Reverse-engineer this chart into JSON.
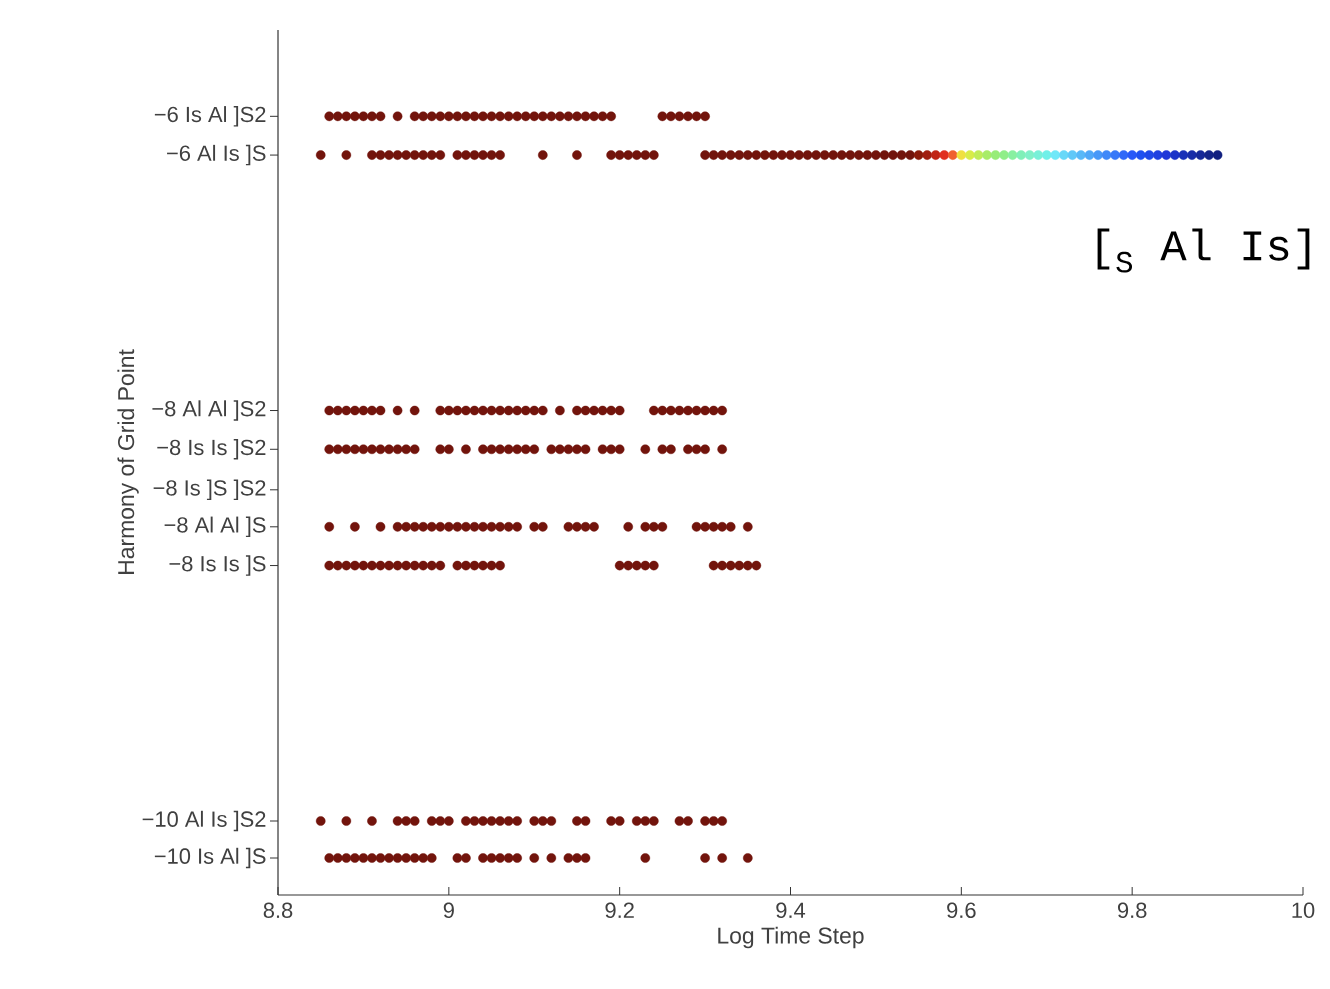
{
  "chart_data": {
    "type": "scatter",
    "xlabel": "Log Time Step",
    "ylabel": "Harmony of Grid Point",
    "annotations": [
      "[$_{S}$ Al Is]"
    ],
    "xlim": [
      8.8,
      10
    ],
    "ylim": [
      -10.31,
      -5.4
    ],
    "xticks": [
      8.8,
      9,
      9.2,
      9.4,
      9.6,
      9.8,
      10
    ],
    "yticks": [
      {
        "value": -5.89,
        "label": "−6 Is Al ]S2"
      },
      {
        "value": -6.11,
        "label": "−6 Al Is ]S"
      },
      {
        "value": -7.56,
        "label": "−8 Al Al ]S2"
      },
      {
        "value": -7.78,
        "label": "−8 Is Is ]S2"
      },
      {
        "value": -8.01,
        "label": "−8 Is ]S ]S2"
      },
      {
        "value": -8.22,
        "label": "−8 Al Al ]S"
      },
      {
        "value": -8.44,
        "label": "−8 Is Is ]S"
      },
      {
        "value": -9.89,
        "label": "−10 Al Is ]S2"
      },
      {
        "value": -10.1,
        "label": "−10 Is Al ]S"
      }
    ],
    "grid": false,
    "series": [
      {
        "color": "#72140c",
        "x": [
          8.86,
          8.87,
          8.88,
          8.89,
          8.9,
          8.91,
          8.92,
          8.94,
          8.96,
          8.97,
          8.98,
          8.99,
          9.0,
          9.01,
          9.02,
          9.03,
          9.04,
          9.05,
          9.06,
          9.07,
          9.08,
          9.09,
          9.1,
          9.11,
          9.12,
          9.13,
          9.14,
          9.15,
          9.16,
          9.17,
          9.18,
          9.19,
          9.25,
          9.26,
          9.27,
          9.28,
          9.29,
          9.3
        ],
        "values": [
          -5.89,
          -5.89,
          -5.89,
          -5.89,
          -5.89,
          -5.89,
          -5.89,
          -5.89,
          -5.89,
          -5.89,
          -5.89,
          -5.89,
          -5.89,
          -5.89,
          -5.89,
          -5.89,
          -5.89,
          -5.89,
          -5.89,
          -5.89,
          -5.89,
          -5.89,
          -5.89,
          -5.89,
          -5.89,
          -5.89,
          -5.89,
          -5.89,
          -5.89,
          -5.89,
          -5.89,
          -5.89,
          -5.89,
          -5.89,
          -5.89,
          -5.89,
          -5.89,
          -5.89
        ]
      },
      {
        "color": "#72140c",
        "x": [
          8.85,
          8.88,
          8.91,
          8.92,
          8.93,
          8.94,
          8.95,
          8.96,
          8.97,
          8.98,
          8.99,
          9.01,
          9.02,
          9.03,
          9.04,
          9.05,
          9.06,
          9.11,
          9.15,
          9.19,
          9.2,
          9.21,
          9.22,
          9.23,
          9.24,
          9.3,
          9.31,
          9.32,
          9.33,
          9.34,
          9.35,
          9.36,
          9.37,
          9.38,
          9.39,
          9.4,
          9.41,
          9.42,
          9.43,
          9.44,
          9.45,
          9.46,
          9.47,
          9.48,
          9.49,
          9.5,
          9.51,
          9.52,
          9.53,
          9.54
        ],
        "values": [
          -6.11,
          -6.11,
          -6.11,
          -6.11,
          -6.11,
          -6.11,
          -6.11,
          -6.11,
          -6.11,
          -6.11,
          -6.11,
          -6.11,
          -6.11,
          -6.11,
          -6.11,
          -6.11,
          -6.11,
          -6.11,
          -6.11,
          -6.11,
          -6.11,
          -6.11,
          -6.11,
          -6.11,
          -6.11,
          -6.11,
          -6.11,
          -6.11,
          -6.11,
          -6.11,
          -6.11,
          -6.11,
          -6.11,
          -6.11,
          -6.11,
          -6.11,
          -6.11,
          -6.11,
          -6.11,
          -6.11,
          -6.11,
          -6.11,
          -6.11,
          -6.11,
          -6.11,
          -6.11,
          -6.11,
          -6.11,
          -6.11,
          -6.11
        ]
      },
      {
        "colors": [
          "#8a1a0a",
          "#a01e10",
          "#c02515",
          "#e03020",
          "#f06030",
          "#f0e040",
          "#d8ec48",
          "#c0ec58",
          "#a8ec68",
          "#98ec78",
          "#90ee88",
          "#88f0a0",
          "#80f0b8",
          "#80f0c8",
          "#78f0d8",
          "#70f0e8",
          "#70e8f8",
          "#68d8f8",
          "#60c8f8",
          "#58b8f8",
          "#50a8f8",
          "#4898f8",
          "#4088f8",
          "#3878f8",
          "#3068f8",
          "#2858f8",
          "#2050f0",
          "#2048e8",
          "#2040e0",
          "#2038d8",
          "#1c34c8",
          "#1a30b8",
          "#182ca8",
          "#162898",
          "#142488",
          "#122080"
        ],
        "x": [
          9.55,
          9.56,
          9.57,
          9.58,
          9.59,
          9.6,
          9.61,
          9.62,
          9.63,
          9.64,
          9.65,
          9.66,
          9.67,
          9.68,
          9.69,
          9.7,
          9.71,
          9.72,
          9.73,
          9.74,
          9.75,
          9.76,
          9.77,
          9.78,
          9.79,
          9.8,
          9.81,
          9.82,
          9.83,
          9.84,
          9.85,
          9.86,
          9.87,
          9.88,
          9.89,
          9.9
        ],
        "values": [
          -6.11,
          -6.11,
          -6.11,
          -6.11,
          -6.11,
          -6.11,
          -6.11,
          -6.11,
          -6.11,
          -6.11,
          -6.11,
          -6.11,
          -6.11,
          -6.11,
          -6.11,
          -6.11,
          -6.11,
          -6.11,
          -6.11,
          -6.11,
          -6.11,
          -6.11,
          -6.11,
          -6.11,
          -6.11,
          -6.11,
          -6.11,
          -6.11,
          -6.11,
          -6.11,
          -6.11,
          -6.11,
          -6.11,
          -6.11,
          -6.11,
          -6.11
        ]
      },
      {
        "color": "#72140c",
        "x": [
          8.86,
          8.87,
          8.88,
          8.89,
          8.9,
          8.91,
          8.92,
          8.94,
          8.96,
          8.99,
          9.0,
          9.01,
          9.02,
          9.03,
          9.04,
          9.05,
          9.06,
          9.07,
          9.08,
          9.09,
          9.1,
          9.11,
          9.13,
          9.15,
          9.16,
          9.17,
          9.18,
          9.19,
          9.2,
          9.24,
          9.25,
          9.26,
          9.27,
          9.28,
          9.29,
          9.3,
          9.31,
          9.32
        ],
        "values": [
          -7.56,
          -7.56,
          -7.56,
          -7.56,
          -7.56,
          -7.56,
          -7.56,
          -7.56,
          -7.56,
          -7.56,
          -7.56,
          -7.56,
          -7.56,
          -7.56,
          -7.56,
          -7.56,
          -7.56,
          -7.56,
          -7.56,
          -7.56,
          -7.56,
          -7.56,
          -7.56,
          -7.56,
          -7.56,
          -7.56,
          -7.56,
          -7.56,
          -7.56,
          -7.56,
          -7.56,
          -7.56,
          -7.56,
          -7.56,
          -7.56,
          -7.56,
          -7.56,
          -7.56
        ]
      },
      {
        "color": "#72140c",
        "x": [
          8.86,
          8.87,
          8.88,
          8.89,
          8.9,
          8.91,
          8.92,
          8.93,
          8.94,
          8.95,
          8.96,
          8.99,
          9.0,
          9.02,
          9.04,
          9.05,
          9.06,
          9.07,
          9.08,
          9.09,
          9.1,
          9.12,
          9.13,
          9.14,
          9.15,
          9.16,
          9.18,
          9.19,
          9.2,
          9.23,
          9.25,
          9.26,
          9.28,
          9.29,
          9.3,
          9.32
        ],
        "values": [
          -7.78,
          -7.78,
          -7.78,
          -7.78,
          -7.78,
          -7.78,
          -7.78,
          -7.78,
          -7.78,
          -7.78,
          -7.78,
          -7.78,
          -7.78,
          -7.78,
          -7.78,
          -7.78,
          -7.78,
          -7.78,
          -7.78,
          -7.78,
          -7.78,
          -7.78,
          -7.78,
          -7.78,
          -7.78,
          -7.78,
          -7.78,
          -7.78,
          -7.78,
          -7.78,
          -7.78,
          -7.78,
          -7.78,
          -7.78,
          -7.78,
          -7.78
        ]
      },
      {
        "color": "#72140c",
        "x": [
          8.86,
          8.89,
          8.92,
          8.94,
          8.95,
          8.96,
          8.97,
          8.98,
          8.99,
          9.0,
          9.01,
          9.02,
          9.03,
          9.04,
          9.05,
          9.06,
          9.07,
          9.08,
          9.1,
          9.11,
          9.14,
          9.15,
          9.16,
          9.17,
          9.21,
          9.23,
          9.24,
          9.25,
          9.29,
          9.3,
          9.31,
          9.32,
          9.33,
          9.35
        ],
        "values": [
          -8.22,
          -8.22,
          -8.22,
          -8.22,
          -8.22,
          -8.22,
          -8.22,
          -8.22,
          -8.22,
          -8.22,
          -8.22,
          -8.22,
          -8.22,
          -8.22,
          -8.22,
          -8.22,
          -8.22,
          -8.22,
          -8.22,
          -8.22,
          -8.22,
          -8.22,
          -8.22,
          -8.22,
          -8.22,
          -8.22,
          -8.22,
          -8.22,
          -8.22,
          -8.22,
          -8.22,
          -8.22,
          -8.22,
          -8.22
        ]
      },
      {
        "color": "#72140c",
        "x": [
          8.86,
          8.87,
          8.88,
          8.89,
          8.9,
          8.91,
          8.92,
          8.93,
          8.94,
          8.95,
          8.96,
          8.97,
          8.98,
          8.99,
          9.01,
          9.02,
          9.03,
          9.04,
          9.05,
          9.06,
          9.2,
          9.21,
          9.22,
          9.23,
          9.24,
          9.31,
          9.32,
          9.33,
          9.34,
          9.35,
          9.36
        ],
        "values": [
          -8.44,
          -8.44,
          -8.44,
          -8.44,
          -8.44,
          -8.44,
          -8.44,
          -8.44,
          -8.44,
          -8.44,
          -8.44,
          -8.44,
          -8.44,
          -8.44,
          -8.44,
          -8.44,
          -8.44,
          -8.44,
          -8.44,
          -8.44,
          -8.44,
          -8.44,
          -8.44,
          -8.44,
          -8.44,
          -8.44,
          -8.44,
          -8.44,
          -8.44,
          -8.44,
          -8.44
        ]
      },
      {
        "color": "#72140c",
        "x": [
          8.85,
          8.88,
          8.91,
          8.94,
          8.95,
          8.96,
          8.98,
          8.99,
          9.0,
          9.02,
          9.03,
          9.04,
          9.05,
          9.06,
          9.07,
          9.08,
          9.1,
          9.11,
          9.12,
          9.15,
          9.16,
          9.19,
          9.2,
          9.22,
          9.23,
          9.24,
          9.27,
          9.28,
          9.3,
          9.31,
          9.32
        ],
        "values": [
          -9.89,
          -9.89,
          -9.89,
          -9.89,
          -9.89,
          -9.89,
          -9.89,
          -9.89,
          -9.89,
          -9.89,
          -9.89,
          -9.89,
          -9.89,
          -9.89,
          -9.89,
          -9.89,
          -9.89,
          -9.89,
          -9.89,
          -9.89,
          -9.89,
          -9.89,
          -9.89,
          -9.89,
          -9.89,
          -9.89,
          -9.89,
          -9.89,
          -9.89,
          -9.89,
          -9.89
        ]
      },
      {
        "color": "#72140c",
        "x": [
          8.86,
          8.87,
          8.88,
          8.89,
          8.9,
          8.91,
          8.92,
          8.93,
          8.94,
          8.95,
          8.96,
          8.97,
          8.98,
          9.01,
          9.02,
          9.04,
          9.05,
          9.06,
          9.07,
          9.08,
          9.1,
          9.12,
          9.14,
          9.15,
          9.16,
          9.23,
          9.3,
          9.32,
          9.35
        ],
        "values": [
          -10.1,
          -10.1,
          -10.1,
          -10.1,
          -10.1,
          -10.1,
          -10.1,
          -10.1,
          -10.1,
          -10.1,
          -10.1,
          -10.1,
          -10.1,
          -10.1,
          -10.1,
          -10.1,
          -10.1,
          -10.1,
          -10.1,
          -10.1,
          -10.1,
          -10.1,
          -10.1,
          -10.1,
          -10.1,
          -10.1,
          -10.1,
          -10.1,
          -10.1
        ]
      }
    ]
  }
}
